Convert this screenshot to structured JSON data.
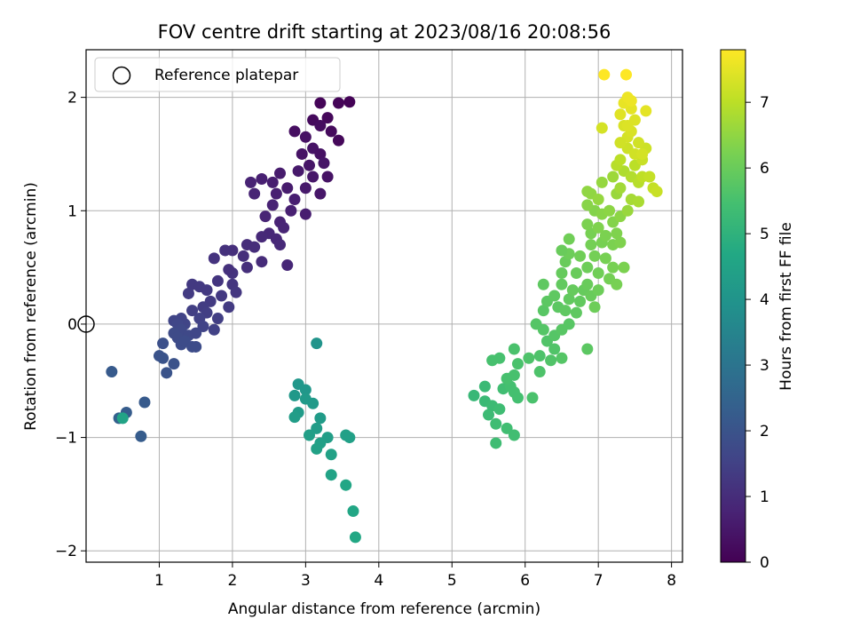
{
  "chart_data": {
    "type": "scatter",
    "title": "FOV centre drift starting at 2023/08/16 20:08:56",
    "xlabel": "Angular distance from reference (arcmin)",
    "ylabel": "Rotation from reference (arcmin)",
    "xlim": [
      0,
      8.15
    ],
    "ylim": [
      -2.1,
      2.42
    ],
    "xticks": [
      1,
      2,
      3,
      4,
      5,
      6,
      7,
      8
    ],
    "yticks": [
      -2,
      -1,
      0,
      1,
      2
    ],
    "xtick_labels": [
      "1",
      "2",
      "3",
      "4",
      "5",
      "6",
      "7",
      "8"
    ],
    "ytick_labels": [
      "−2",
      "−1",
      "0",
      "1",
      "2"
    ],
    "grid": true,
    "colormap": "viridis",
    "colorbar": {
      "label": "Hours from first FF file",
      "min": 0,
      "max": 7.8,
      "ticks": [
        0,
        1,
        2,
        3,
        4,
        5,
        6,
        7
      ],
      "tick_labels": [
        "0",
        "1",
        "2",
        "3",
        "4",
        "5",
        "6",
        "7"
      ]
    },
    "legend": {
      "position": "top-left",
      "entries": [
        "Reference platepar"
      ]
    },
    "reference_point": {
      "x": 0,
      "y": 0
    },
    "points": [
      {
        "x": 3.2,
        "y": 1.95,
        "h": 0.1
      },
      {
        "x": 3.45,
        "y": 1.95,
        "h": 0.1
      },
      {
        "x": 3.6,
        "y": 1.96,
        "h": 0.05
      },
      {
        "x": 3.1,
        "y": 1.8,
        "h": 0.2
      },
      {
        "x": 3.3,
        "y": 1.82,
        "h": 0.15
      },
      {
        "x": 3.2,
        "y": 1.75,
        "h": 0.25
      },
      {
        "x": 2.85,
        "y": 1.7,
        "h": 0.3
      },
      {
        "x": 3.0,
        "y": 1.65,
        "h": 0.35
      },
      {
        "x": 3.35,
        "y": 1.7,
        "h": 0.2
      },
      {
        "x": 3.45,
        "y": 1.62,
        "h": 0.15
      },
      {
        "x": 3.1,
        "y": 1.55,
        "h": 0.4
      },
      {
        "x": 2.95,
        "y": 1.5,
        "h": 0.4
      },
      {
        "x": 3.2,
        "y": 1.5,
        "h": 0.35
      },
      {
        "x": 3.25,
        "y": 1.42,
        "h": 0.45
      },
      {
        "x": 3.05,
        "y": 1.4,
        "h": 0.45
      },
      {
        "x": 3.3,
        "y": 1.3,
        "h": 0.4
      },
      {
        "x": 3.1,
        "y": 1.3,
        "h": 0.5
      },
      {
        "x": 2.9,
        "y": 1.35,
        "h": 0.55
      },
      {
        "x": 2.65,
        "y": 1.33,
        "h": 0.6
      },
      {
        "x": 2.55,
        "y": 1.25,
        "h": 0.65
      },
      {
        "x": 2.4,
        "y": 1.28,
        "h": 0.7
      },
      {
        "x": 2.25,
        "y": 1.25,
        "h": 0.75
      },
      {
        "x": 2.75,
        "y": 1.2,
        "h": 0.6
      },
      {
        "x": 3.0,
        "y": 1.2,
        "h": 0.55
      },
      {
        "x": 3.2,
        "y": 1.15,
        "h": 0.5
      },
      {
        "x": 2.3,
        "y": 1.15,
        "h": 0.8
      },
      {
        "x": 2.6,
        "y": 1.15,
        "h": 0.7
      },
      {
        "x": 2.85,
        "y": 1.1,
        "h": 0.65
      },
      {
        "x": 2.55,
        "y": 1.05,
        "h": 0.75
      },
      {
        "x": 2.8,
        "y": 1.0,
        "h": 0.7
      },
      {
        "x": 3.0,
        "y": 0.97,
        "h": 0.65
      },
      {
        "x": 2.45,
        "y": 0.95,
        "h": 0.8
      },
      {
        "x": 2.65,
        "y": 0.9,
        "h": 0.75
      },
      {
        "x": 2.7,
        "y": 0.85,
        "h": 0.8
      },
      {
        "x": 2.5,
        "y": 0.8,
        "h": 0.85
      },
      {
        "x": 2.6,
        "y": 0.75,
        "h": 0.85
      },
      {
        "x": 2.4,
        "y": 0.77,
        "h": 0.9
      },
      {
        "x": 2.65,
        "y": 0.7,
        "h": 0.9
      },
      {
        "x": 2.2,
        "y": 0.7,
        "h": 1.0
      },
      {
        "x": 2.3,
        "y": 0.68,
        "h": 1.0
      },
      {
        "x": 2.0,
        "y": 0.65,
        "h": 1.05
      },
      {
        "x": 1.9,
        "y": 0.65,
        "h": 1.1
      },
      {
        "x": 2.15,
        "y": 0.6,
        "h": 1.05
      },
      {
        "x": 1.75,
        "y": 0.58,
        "h": 1.15
      },
      {
        "x": 2.4,
        "y": 0.55,
        "h": 0.95
      },
      {
        "x": 2.75,
        "y": 0.52,
        "h": 0.85
      },
      {
        "x": 2.2,
        "y": 0.5,
        "h": 1.05
      },
      {
        "x": 2.0,
        "y": 0.45,
        "h": 1.15
      },
      {
        "x": 1.95,
        "y": 0.48,
        "h": 1.1
      },
      {
        "x": 1.8,
        "y": 0.38,
        "h": 1.2
      },
      {
        "x": 1.45,
        "y": 0.35,
        "h": 1.3
      },
      {
        "x": 1.55,
        "y": 0.33,
        "h": 1.3
      },
      {
        "x": 2.0,
        "y": 0.35,
        "h": 1.2
      },
      {
        "x": 1.65,
        "y": 0.3,
        "h": 1.3
      },
      {
        "x": 1.4,
        "y": 0.27,
        "h": 1.35
      },
      {
        "x": 2.05,
        "y": 0.28,
        "h": 1.25
      },
      {
        "x": 1.85,
        "y": 0.25,
        "h": 1.3
      },
      {
        "x": 1.7,
        "y": 0.2,
        "h": 1.35
      },
      {
        "x": 1.6,
        "y": 0.15,
        "h": 1.4
      },
      {
        "x": 1.45,
        "y": 0.12,
        "h": 1.45
      },
      {
        "x": 1.95,
        "y": 0.15,
        "h": 1.35
      },
      {
        "x": 1.65,
        "y": 0.1,
        "h": 1.45
      },
      {
        "x": 1.55,
        "y": 0.05,
        "h": 1.5
      },
      {
        "x": 1.3,
        "y": 0.05,
        "h": 1.55
      },
      {
        "x": 1.2,
        "y": 0.03,
        "h": 1.6
      },
      {
        "x": 1.35,
        "y": 0.0,
        "h": 1.6
      },
      {
        "x": 1.25,
        "y": 0.0,
        "h": 1.65
      },
      {
        "x": 1.8,
        "y": 0.05,
        "h": 1.45
      },
      {
        "x": 1.75,
        "y": -0.05,
        "h": 1.5
      },
      {
        "x": 1.6,
        "y": -0.02,
        "h": 1.55
      },
      {
        "x": 1.3,
        "y": -0.05,
        "h": 1.7
      },
      {
        "x": 1.2,
        "y": -0.08,
        "h": 1.75
      },
      {
        "x": 1.4,
        "y": -0.1,
        "h": 1.7
      },
      {
        "x": 1.5,
        "y": -0.08,
        "h": 1.65
      },
      {
        "x": 1.25,
        "y": -0.12,
        "h": 1.75
      },
      {
        "x": 1.3,
        "y": -0.18,
        "h": 1.8
      },
      {
        "x": 1.35,
        "y": -0.15,
        "h": 1.8
      },
      {
        "x": 1.05,
        "y": -0.17,
        "h": 1.9
      },
      {
        "x": 1.45,
        "y": -0.2,
        "h": 1.8
      },
      {
        "x": 1.5,
        "y": -0.2,
        "h": 1.8
      },
      {
        "x": 1.0,
        "y": -0.28,
        "h": 2.0
      },
      {
        "x": 1.05,
        "y": -0.3,
        "h": 2.0
      },
      {
        "x": 1.2,
        "y": -0.35,
        "h": 1.95
      },
      {
        "x": 1.1,
        "y": -0.43,
        "h": 2.0
      },
      {
        "x": 0.35,
        "y": -0.42,
        "h": 2.2
      },
      {
        "x": 0.55,
        "y": -0.78,
        "h": 2.25
      },
      {
        "x": 0.8,
        "y": -0.69,
        "h": 2.2
      },
      {
        "x": 0.75,
        "y": -0.99,
        "h": 2.25
      },
      {
        "x": 0.45,
        "y": -0.83,
        "h": 2.4
      },
      {
        "x": 0.5,
        "y": -0.83,
        "h": 4.5
      },
      {
        "x": 3.15,
        "y": -0.17,
        "h": 4.0
      },
      {
        "x": 2.9,
        "y": -0.53,
        "h": 4.1
      },
      {
        "x": 3.0,
        "y": -0.58,
        "h": 4.1
      },
      {
        "x": 2.85,
        "y": -0.63,
        "h": 4.15
      },
      {
        "x": 3.0,
        "y": -0.66,
        "h": 4.2
      },
      {
        "x": 3.1,
        "y": -0.7,
        "h": 4.2
      },
      {
        "x": 2.9,
        "y": -0.78,
        "h": 4.25
      },
      {
        "x": 3.2,
        "y": -0.83,
        "h": 4.25
      },
      {
        "x": 2.85,
        "y": -0.82,
        "h": 4.3
      },
      {
        "x": 3.15,
        "y": -0.92,
        "h": 4.3
      },
      {
        "x": 3.05,
        "y": -0.98,
        "h": 4.35
      },
      {
        "x": 3.3,
        "y": -1.0,
        "h": 4.35
      },
      {
        "x": 3.55,
        "y": -0.98,
        "h": 4.4
      },
      {
        "x": 3.6,
        "y": -1.0,
        "h": 4.4
      },
      {
        "x": 3.2,
        "y": -1.05,
        "h": 4.4
      },
      {
        "x": 3.15,
        "y": -1.1,
        "h": 4.45
      },
      {
        "x": 3.35,
        "y": -1.15,
        "h": 4.45
      },
      {
        "x": 3.35,
        "y": -1.33,
        "h": 4.5
      },
      {
        "x": 3.55,
        "y": -1.42,
        "h": 4.6
      },
      {
        "x": 3.65,
        "y": -1.65,
        "h": 4.6
      },
      {
        "x": 3.68,
        "y": -1.88,
        "h": 4.65
      },
      {
        "x": 5.3,
        "y": -0.63,
        "h": 5.2
      },
      {
        "x": 5.45,
        "y": -0.55,
        "h": 5.25
      },
      {
        "x": 5.45,
        "y": -0.68,
        "h": 5.25
      },
      {
        "x": 5.55,
        "y": -0.72,
        "h": 5.3
      },
      {
        "x": 5.5,
        "y": -0.8,
        "h": 5.3
      },
      {
        "x": 5.6,
        "y": -0.88,
        "h": 5.35
      },
      {
        "x": 5.65,
        "y": -0.75,
        "h": 5.35
      },
      {
        "x": 5.6,
        "y": -1.05,
        "h": 5.35
      },
      {
        "x": 5.75,
        "y": -0.92,
        "h": 5.4
      },
      {
        "x": 5.85,
        "y": -0.98,
        "h": 5.4
      },
      {
        "x": 5.7,
        "y": -0.57,
        "h": 5.4
      },
      {
        "x": 5.8,
        "y": -0.55,
        "h": 5.45
      },
      {
        "x": 5.85,
        "y": -0.6,
        "h": 5.45
      },
      {
        "x": 5.9,
        "y": -0.65,
        "h": 5.45
      },
      {
        "x": 5.75,
        "y": -0.48,
        "h": 5.5
      },
      {
        "x": 5.85,
        "y": -0.45,
        "h": 5.5
      },
      {
        "x": 5.9,
        "y": -0.35,
        "h": 5.55
      },
      {
        "x": 5.65,
        "y": -0.3,
        "h": 5.5
      },
      {
        "x": 5.55,
        "y": -0.32,
        "h": 5.5
      },
      {
        "x": 5.85,
        "y": -0.22,
        "h": 5.55
      },
      {
        "x": 6.1,
        "y": -0.65,
        "h": 5.55
      },
      {
        "x": 6.2,
        "y": -0.42,
        "h": 5.6
      },
      {
        "x": 6.2,
        "y": -0.28,
        "h": 5.6
      },
      {
        "x": 6.05,
        "y": -0.3,
        "h": 5.6
      },
      {
        "x": 6.35,
        "y": -0.32,
        "h": 5.65
      },
      {
        "x": 6.4,
        "y": -0.22,
        "h": 5.65
      },
      {
        "x": 6.5,
        "y": -0.3,
        "h": 5.7
      },
      {
        "x": 6.3,
        "y": -0.15,
        "h": 5.65
      },
      {
        "x": 6.25,
        "y": -0.05,
        "h": 5.7
      },
      {
        "x": 6.15,
        "y": 0.0,
        "h": 5.7
      },
      {
        "x": 6.4,
        "y": -0.1,
        "h": 5.7
      },
      {
        "x": 6.5,
        "y": -0.05,
        "h": 5.75
      },
      {
        "x": 6.6,
        "y": 0.0,
        "h": 5.75
      },
      {
        "x": 6.85,
        "y": -0.22,
        "h": 5.8
      },
      {
        "x": 6.25,
        "y": 0.12,
        "h": 5.75
      },
      {
        "x": 6.3,
        "y": 0.2,
        "h": 5.8
      },
      {
        "x": 6.45,
        "y": 0.15,
        "h": 5.8
      },
      {
        "x": 6.55,
        "y": 0.12,
        "h": 5.85
      },
      {
        "x": 6.7,
        "y": 0.1,
        "h": 5.85
      },
      {
        "x": 6.4,
        "y": 0.25,
        "h": 5.85
      },
      {
        "x": 6.6,
        "y": 0.22,
        "h": 5.9
      },
      {
        "x": 6.75,
        "y": 0.2,
        "h": 5.9
      },
      {
        "x": 6.8,
        "y": 0.3,
        "h": 5.95
      },
      {
        "x": 6.65,
        "y": 0.3,
        "h": 5.95
      },
      {
        "x": 6.5,
        "y": 0.35,
        "h": 5.9
      },
      {
        "x": 6.25,
        "y": 0.35,
        "h": 5.85
      },
      {
        "x": 6.9,
        "y": 0.25,
        "h": 6.0
      },
      {
        "x": 6.95,
        "y": 0.15,
        "h": 6.05
      },
      {
        "x": 6.85,
        "y": 0.35,
        "h": 6.0
      },
      {
        "x": 7.0,
        "y": 0.3,
        "h": 6.05
      },
      {
        "x": 6.5,
        "y": 0.45,
        "h": 5.95
      },
      {
        "x": 6.7,
        "y": 0.45,
        "h": 6.0
      },
      {
        "x": 6.85,
        "y": 0.5,
        "h": 6.05
      },
      {
        "x": 7.0,
        "y": 0.45,
        "h": 6.1
      },
      {
        "x": 7.15,
        "y": 0.4,
        "h": 6.15
      },
      {
        "x": 7.2,
        "y": 0.5,
        "h": 6.2
      },
      {
        "x": 7.35,
        "y": 0.5,
        "h": 6.25
      },
      {
        "x": 7.25,
        "y": 0.35,
        "h": 6.2
      },
      {
        "x": 6.55,
        "y": 0.55,
        "h": 6.0
      },
      {
        "x": 6.6,
        "y": 0.62,
        "h": 6.05
      },
      {
        "x": 6.5,
        "y": 0.65,
        "h": 6.0
      },
      {
        "x": 6.75,
        "y": 0.6,
        "h": 6.1
      },
      {
        "x": 6.95,
        "y": 0.6,
        "h": 6.15
      },
      {
        "x": 7.1,
        "y": 0.58,
        "h": 6.2
      },
      {
        "x": 6.9,
        "y": 0.7,
        "h": 6.15
      },
      {
        "x": 7.05,
        "y": 0.72,
        "h": 6.2
      },
      {
        "x": 7.2,
        "y": 0.7,
        "h": 6.25
      },
      {
        "x": 6.6,
        "y": 0.75,
        "h": 6.1
      },
      {
        "x": 6.9,
        "y": 0.8,
        "h": 6.2
      },
      {
        "x": 7.1,
        "y": 0.78,
        "h": 6.25
      },
      {
        "x": 7.25,
        "y": 0.8,
        "h": 6.3
      },
      {
        "x": 6.85,
        "y": 0.88,
        "h": 6.25
      },
      {
        "x": 7.0,
        "y": 0.85,
        "h": 6.3
      },
      {
        "x": 7.2,
        "y": 0.9,
        "h": 6.35
      },
      {
        "x": 7.3,
        "y": 0.72,
        "h": 6.3
      },
      {
        "x": 6.95,
        "y": 1.0,
        "h": 6.35
      },
      {
        "x": 7.05,
        "y": 0.97,
        "h": 6.4
      },
      {
        "x": 6.85,
        "y": 1.05,
        "h": 6.4
      },
      {
        "x": 7.15,
        "y": 1.0,
        "h": 6.45
      },
      {
        "x": 7.3,
        "y": 0.95,
        "h": 6.45
      },
      {
        "x": 6.9,
        "y": 1.15,
        "h": 6.5
      },
      {
        "x": 7.0,
        "y": 1.1,
        "h": 6.55
      },
      {
        "x": 6.85,
        "y": 1.17,
        "h": 6.5
      },
      {
        "x": 7.05,
        "y": 1.25,
        "h": 6.55
      },
      {
        "x": 7.25,
        "y": 1.15,
        "h": 6.6
      },
      {
        "x": 7.4,
        "y": 1.0,
        "h": 6.6
      },
      {
        "x": 7.2,
        "y": 1.3,
        "h": 6.65
      },
      {
        "x": 7.3,
        "y": 1.2,
        "h": 6.7
      },
      {
        "x": 7.45,
        "y": 1.1,
        "h": 6.75
      },
      {
        "x": 7.55,
        "y": 1.08,
        "h": 6.8
      },
      {
        "x": 7.35,
        "y": 1.35,
        "h": 6.85
      },
      {
        "x": 7.45,
        "y": 1.3,
        "h": 6.9
      },
      {
        "x": 7.55,
        "y": 1.25,
        "h": 6.95
      },
      {
        "x": 7.25,
        "y": 1.4,
        "h": 6.95
      },
      {
        "x": 7.3,
        "y": 1.45,
        "h": 7.0
      },
      {
        "x": 7.5,
        "y": 1.4,
        "h": 7.0
      },
      {
        "x": 7.6,
        "y": 1.3,
        "h": 7.05
      },
      {
        "x": 7.7,
        "y": 1.3,
        "h": 7.1
      },
      {
        "x": 7.75,
        "y": 1.2,
        "h": 7.1
      },
      {
        "x": 7.8,
        "y": 1.17,
        "h": 7.15
      },
      {
        "x": 7.6,
        "y": 1.45,
        "h": 7.15
      },
      {
        "x": 7.65,
        "y": 1.55,
        "h": 7.2
      },
      {
        "x": 7.4,
        "y": 1.55,
        "h": 7.2
      },
      {
        "x": 7.5,
        "y": 1.5,
        "h": 7.25
      },
      {
        "x": 7.55,
        "y": 1.6,
        "h": 7.25
      },
      {
        "x": 7.4,
        "y": 1.65,
        "h": 7.3
      },
      {
        "x": 7.45,
        "y": 1.7,
        "h": 7.35
      },
      {
        "x": 7.35,
        "y": 1.75,
        "h": 7.35
      },
      {
        "x": 7.5,
        "y": 1.8,
        "h": 7.4
      },
      {
        "x": 7.3,
        "y": 1.85,
        "h": 7.45
      },
      {
        "x": 7.45,
        "y": 1.9,
        "h": 7.5
      },
      {
        "x": 7.35,
        "y": 1.95,
        "h": 7.55
      },
      {
        "x": 7.4,
        "y": 2.0,
        "h": 7.6
      },
      {
        "x": 7.45,
        "y": 1.97,
        "h": 7.6
      },
      {
        "x": 7.6,
        "y": 1.5,
        "h": 7.3
      },
      {
        "x": 7.65,
        "y": 1.88,
        "h": 7.5
      },
      {
        "x": 7.05,
        "y": 1.73,
        "h": 7.3
      },
      {
        "x": 7.38,
        "y": 2.2,
        "h": 7.8
      },
      {
        "x": 7.08,
        "y": 2.2,
        "h": 7.8
      },
      {
        "x": 7.3,
        "y": 1.6,
        "h": 7.25
      },
      {
        "x": 7.4,
        "y": 1.75,
        "h": 7.4
      }
    ]
  }
}
